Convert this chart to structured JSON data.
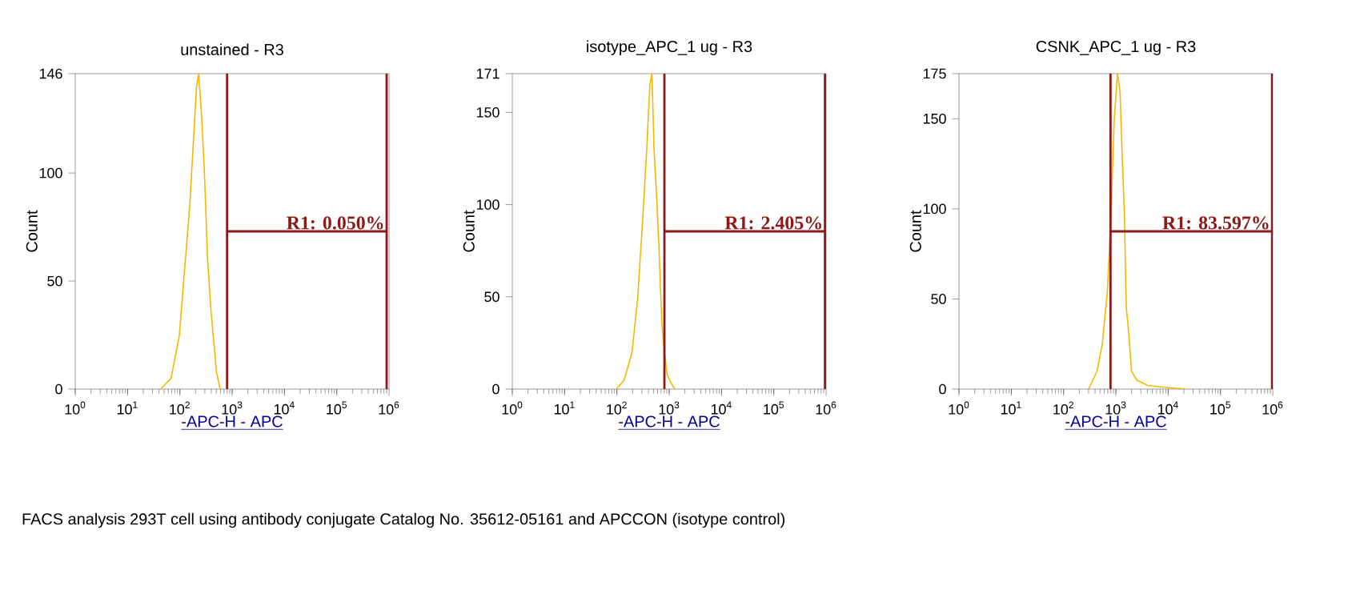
{
  "chart_data": [
    {
      "type": "line",
      "title": "unstained - R3",
      "xlabel": "-APC-H - APC",
      "ylabel": "Count",
      "log": "x",
      "grid": false,
      "marker": "none",
      "xlim": [
        1,
        1000000
      ],
      "ylim": [
        0,
        146
      ],
      "xticks": [
        {
          "value": 1,
          "label": "10$^{0}$"
        },
        {
          "value": 10,
          "label": "10$^{1}$"
        },
        {
          "value": 100,
          "label": "10$^{2}$"
        },
        {
          "value": 1000,
          "label": "10$^{3}$"
        },
        {
          "value": 10000,
          "label": "10$^{4}$"
        },
        {
          "value": 100000,
          "label": "10$^{5}$"
        },
        {
          "value": 1000000,
          "label": "10$^{6}$"
        }
      ],
      "yticks": [
        0,
        50,
        100,
        146
      ],
      "ref_lines": [
        {
          "axis": "x",
          "value": 800,
          "color": "#8b1a1a"
        },
        {
          "axis": "x",
          "value": 900000,
          "color": "#8b1a1a"
        }
      ],
      "series": [
        {
          "color": "#f5b800",
          "x": [
            43,
            68,
            98,
            123,
            155,
            182,
            209,
            229,
            263,
            295,
            339,
            398,
            501,
            589
          ],
          "values": [
            0,
            5,
            25,
            55,
            85,
            115,
            140,
            146,
            125,
            100,
            60,
            35,
            8,
            0
          ]
        }
      ],
      "annotations": [
        "R1: 0.050%",
        "FACS analysis 293T cell using antibody conjugate Catalog No. 35612-05161 and APCCON (isotype control)"
      ]
    },
    {
      "type": "line",
      "title": "isotype_APC_1 ug - R3",
      "xlabel": "-APC-H - APC",
      "ylabel": "Count",
      "log": "x",
      "grid": false,
      "marker": "none",
      "xlim": [
        1,
        1000000
      ],
      "ylim": [
        0,
        171
      ],
      "xticks": [
        {
          "value": 1,
          "label": "10$^{0}$"
        },
        {
          "value": 10,
          "label": "10$^{1}$"
        },
        {
          "value": 100,
          "label": "10$^{2}$"
        },
        {
          "value": 1000,
          "label": "10$^{3}$"
        },
        {
          "value": 10000,
          "label": "10$^{4}$"
        },
        {
          "value": 100000,
          "label": "10$^{5}$"
        },
        {
          "value": 1000000,
          "label": "10$^{6}$"
        }
      ],
      "yticks": [
        0,
        50,
        100,
        150,
        171
      ],
      "ref_lines": [
        {
          "axis": "x",
          "value": 810,
          "color": "#8b1a1a"
        },
        {
          "axis": "x",
          "value": 950000,
          "color": "#8b1a1a"
        }
      ],
      "annotations": [
        "R1: 2.405%"
      ],
      "series": [
        {
          "color": "#f5b800",
          "x": [
            98,
            138,
            195,
            251,
            316,
            372,
            427,
            468,
            513,
            562,
            631,
            724,
            813,
            912,
            1096,
            1288
          ],
          "values": [
            0,
            5,
            20,
            50,
            95,
            130,
            165,
            171,
            130,
            110,
            80,
            35,
            20,
            8,
            3,
            0
          ]
        }
      ]
    },
    {
      "type": "line",
      "title": "CSNK_APC_1 ug - R3",
      "xlabel": "-APC-H - APC",
      "ylabel": "Count",
      "log": "x",
      "grid": false,
      "marker": "none",
      "xlim": [
        1,
        1000000
      ],
      "ylim": [
        0,
        175
      ],
      "xticks": [
        {
          "value": 1,
          "label": "10$^{0}$"
        },
        {
          "value": 10,
          "label": "10$^{1}$"
        },
        {
          "value": 100,
          "label": "10$^{2}$"
        },
        {
          "value": 1000,
          "label": "10$^{3}$"
        },
        {
          "value": 10000,
          "label": "10$^{4}$"
        },
        {
          "value": 100000,
          "label": "10$^{5}$"
        },
        {
          "value": 1000000,
          "label": "10$^{6}$"
        }
      ],
      "yticks": [
        0,
        50,
        100,
        150,
        175
      ],
      "ref_lines": [
        {
          "axis": "x",
          "value": 790,
          "color": "#8b1a1a"
        },
        {
          "axis": "x",
          "value": 970000,
          "color": "#8b1a1a"
        }
      ],
      "annotations": [
        "R1: 83.597%"
      ],
      "series": [
        {
          "color": "#f5b800",
          "x": [
            302,
            437,
            550,
            692,
            813,
            933,
            1072,
            1202,
            1318,
            1445,
            1585,
            1778,
            1995,
            2512,
            4074,
            8318,
            21380
          ],
          "values": [
            0,
            10,
            25,
            55,
            100,
            150,
            175,
            165,
            130,
            100,
            45,
            30,
            10,
            5,
            2,
            1,
            0
          ]
        }
      ]
    }
  ]
}
